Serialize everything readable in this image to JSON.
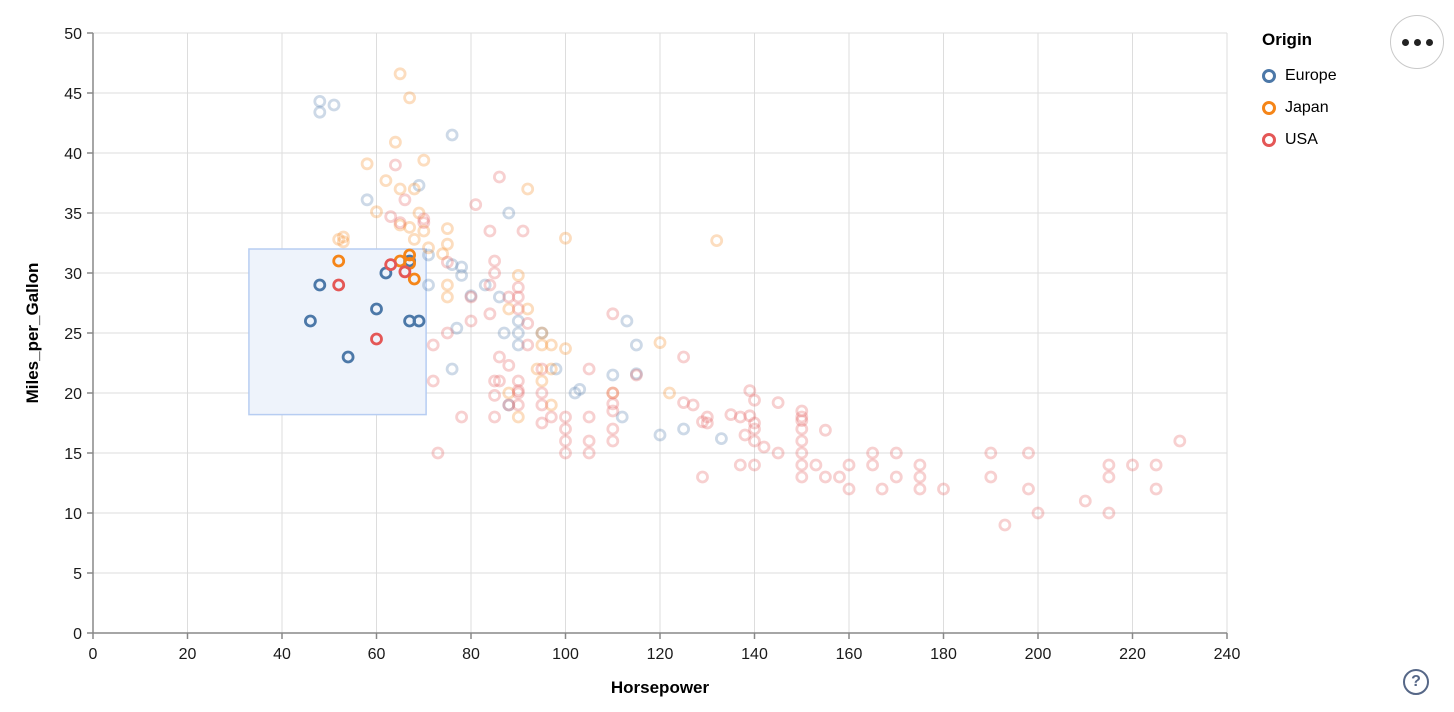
{
  "chart_data": {
    "type": "scatter",
    "xlabel": "Horsepower",
    "ylabel": "Miles_per_Gallon",
    "xlim": [
      0,
      240
    ],
    "ylim": [
      0,
      50
    ],
    "x_ticks": [
      0,
      20,
      40,
      60,
      80,
      100,
      120,
      140,
      160,
      180,
      200,
      220,
      240
    ],
    "y_ticks": [
      0,
      5,
      10,
      15,
      20,
      25,
      30,
      35,
      40,
      45,
      50
    ],
    "grid": true,
    "colors": {
      "grid": "#dddddd",
      "axis": "#888888",
      "tick_text": "#1a1a1a",
      "brush_fill": "#eef3fb",
      "brush_stroke": "#b7cdf2"
    },
    "faded_opacity": 0.28,
    "brush": {
      "hp": [
        33,
        70.5
      ],
      "mpg": [
        18.2,
        32
      ]
    },
    "legend": {
      "title": "Origin",
      "position": "top-right",
      "entries": [
        {
          "label": "Europe",
          "color": "#4c78a8"
        },
        {
          "label": "Japan",
          "color": "#f58518"
        },
        {
          "label": "USA",
          "color": "#e45756"
        }
      ]
    },
    "series": [
      {
        "name": "Europe",
        "color": "#4c78a8",
        "points": [
          [
            46,
            26
          ],
          [
            48,
            29
          ],
          [
            54,
            23
          ],
          [
            60,
            27
          ],
          [
            62,
            30
          ],
          [
            67,
            31
          ],
          [
            67,
            26
          ],
          [
            69,
            26
          ],
          [
            48,
            44.3
          ],
          [
            51,
            44
          ],
          [
            48,
            43.4
          ],
          [
            76,
            41.5
          ],
          [
            69,
            37.3
          ],
          [
            58,
            36.1
          ],
          [
            88,
            35
          ],
          [
            71,
            31.5
          ],
          [
            76,
            30.7
          ],
          [
            78,
            30.5
          ],
          [
            78,
            29.8
          ],
          [
            71,
            29
          ],
          [
            83,
            29
          ],
          [
            86,
            28
          ],
          [
            80,
            28.1
          ],
          [
            90,
            26
          ],
          [
            113,
            26
          ],
          [
            87,
            25
          ],
          [
            90,
            25
          ],
          [
            95,
            25
          ],
          [
            77,
            25.4
          ],
          [
            90,
            24
          ],
          [
            115,
            24
          ],
          [
            98,
            22
          ],
          [
            76,
            22
          ],
          [
            102,
            20
          ],
          [
            103,
            20.3
          ],
          [
            112,
            18
          ],
          [
            88,
            19
          ],
          [
            110,
            21.5
          ],
          [
            115,
            21.6
          ],
          [
            125,
            17
          ],
          [
            120,
            16.5
          ],
          [
            133,
            16.2
          ]
        ]
      },
      {
        "name": "Japan",
        "color": "#f58518",
        "points": [
          [
            52,
            31
          ],
          [
            65,
            31
          ],
          [
            67,
            31.5
          ],
          [
            67,
            30.8
          ],
          [
            68,
            29.5
          ],
          [
            65,
            46.6
          ],
          [
            67,
            44.6
          ],
          [
            64,
            40.9
          ],
          [
            70,
            39.4
          ],
          [
            58,
            39.1
          ],
          [
            92,
            37
          ],
          [
            65,
            37
          ],
          [
            62,
            37.7
          ],
          [
            68,
            37
          ],
          [
            60,
            35.1
          ],
          [
            69,
            35
          ],
          [
            65,
            34
          ],
          [
            67,
            33.8
          ],
          [
            53,
            33
          ],
          [
            70,
            33.5
          ],
          [
            52,
            32.8
          ],
          [
            53,
            32.6
          ],
          [
            132,
            32.7
          ],
          [
            100,
            32.9
          ],
          [
            75,
            33.7
          ],
          [
            75,
            32.4
          ],
          [
            74,
            31.6
          ],
          [
            68,
            32.8
          ],
          [
            71,
            32.1
          ],
          [
            90,
            29.8
          ],
          [
            95,
            24
          ],
          [
            95,
            25
          ],
          [
            88,
            27
          ],
          [
            92,
            27
          ],
          [
            97,
            24
          ],
          [
            97,
            22
          ],
          [
            94,
            22
          ],
          [
            88,
            20
          ],
          [
            110,
            20
          ],
          [
            122,
            20
          ],
          [
            120,
            24.2
          ],
          [
            97,
            19
          ],
          [
            90,
            18
          ],
          [
            95,
            21
          ],
          [
            100,
            23.7
          ],
          [
            75,
            29
          ],
          [
            75,
            28
          ]
        ]
      },
      {
        "name": "USA",
        "color": "#e45756",
        "points": [
          [
            52,
            29
          ],
          [
            60,
            24.5
          ],
          [
            63,
            30.7
          ],
          [
            66,
            30.1
          ],
          [
            66,
            36.1
          ],
          [
            64,
            39
          ],
          [
            63,
            34.7
          ],
          [
            65,
            34.2
          ],
          [
            70,
            34.5
          ],
          [
            70,
            34.2
          ],
          [
            75,
            30.9
          ],
          [
            73,
            15
          ],
          [
            86,
            38
          ],
          [
            81,
            35.7
          ],
          [
            84,
            33.5
          ],
          [
            91,
            33.5
          ],
          [
            85,
            31
          ],
          [
            88,
            28
          ],
          [
            84,
            29
          ],
          [
            90,
            27
          ],
          [
            84,
            26.6
          ],
          [
            85,
            30
          ],
          [
            92,
            25.8
          ],
          [
            90,
            28.8
          ],
          [
            110,
            26.6
          ],
          [
            92,
            24
          ],
          [
            88,
            22.3
          ],
          [
            85,
            19.8
          ],
          [
            90,
            20.2
          ],
          [
            110,
            19.1
          ],
          [
            90,
            28
          ],
          [
            95,
            22
          ],
          [
            97,
            18
          ],
          [
            85,
            21
          ],
          [
            90,
            21
          ],
          [
            105,
            22
          ],
          [
            88,
            19
          ],
          [
            100,
            18
          ],
          [
            105,
            16
          ],
          [
            100,
            17
          ],
          [
            90,
            19
          ],
          [
            86,
            21
          ],
          [
            86,
            23
          ],
          [
            85,
            18
          ],
          [
            100,
            16
          ],
          [
            95,
            20
          ],
          [
            105,
            18
          ],
          [
            95,
            19
          ],
          [
            90,
            20
          ],
          [
            110,
            18.5
          ],
          [
            95,
            17.5
          ],
          [
            110,
            20
          ],
          [
            129,
            13
          ],
          [
            105,
            15
          ],
          [
            110,
            16
          ],
          [
            72,
            21
          ],
          [
            75,
            25
          ],
          [
            80,
            26
          ],
          [
            80,
            28
          ],
          [
            72,
            24
          ],
          [
            78,
            18
          ],
          [
            110,
            17
          ],
          [
            130,
            17.5
          ],
          [
            129,
            17.6
          ],
          [
            138,
            16.5
          ],
          [
            135,
            18.2
          ],
          [
            155,
            16.9
          ],
          [
            142,
            15.5
          ],
          [
            125,
            19.2
          ],
          [
            150,
            18.5
          ],
          [
            140,
            17.5
          ],
          [
            145,
            19.2
          ],
          [
            150,
            17.7
          ],
          [
            139,
            18.1
          ],
          [
            140,
            19.4
          ],
          [
            139,
            20.2
          ],
          [
            115,
            21.5
          ],
          [
            125,
            23
          ],
          [
            127,
            19
          ],
          [
            130,
            18
          ],
          [
            165,
            15
          ],
          [
            150,
            18
          ],
          [
            150,
            16
          ],
          [
            140,
            17
          ],
          [
            198,
            15
          ],
          [
            220,
            14
          ],
          [
            215,
            14
          ],
          [
            225,
            14
          ],
          [
            190,
            15
          ],
          [
            170,
            15
          ],
          [
            160,
            14
          ],
          [
            150,
            15
          ],
          [
            215,
            10
          ],
          [
            200,
            10
          ],
          [
            210,
            11
          ],
          [
            193,
            9
          ],
          [
            165,
            14
          ],
          [
            175,
            14
          ],
          [
            153,
            14
          ],
          [
            150,
            14
          ],
          [
            180,
            12
          ],
          [
            170,
            13
          ],
          [
            175,
            12
          ],
          [
            155,
            13
          ],
          [
            160,
            12
          ],
          [
            190,
            13
          ],
          [
            140,
            14
          ],
          [
            150,
            17
          ],
          [
            150,
            13
          ],
          [
            158,
            13
          ],
          [
            137,
            14
          ],
          [
            215,
            13
          ],
          [
            225,
            12
          ],
          [
            175,
            13
          ],
          [
            198,
            12
          ],
          [
            167,
            12
          ],
          [
            230,
            16
          ],
          [
            145,
            15
          ],
          [
            137,
            18
          ],
          [
            140,
            16
          ],
          [
            100,
            15
          ]
        ]
      }
    ]
  },
  "controls": {
    "menu_icon": "ellipsis",
    "help_label": "?"
  }
}
